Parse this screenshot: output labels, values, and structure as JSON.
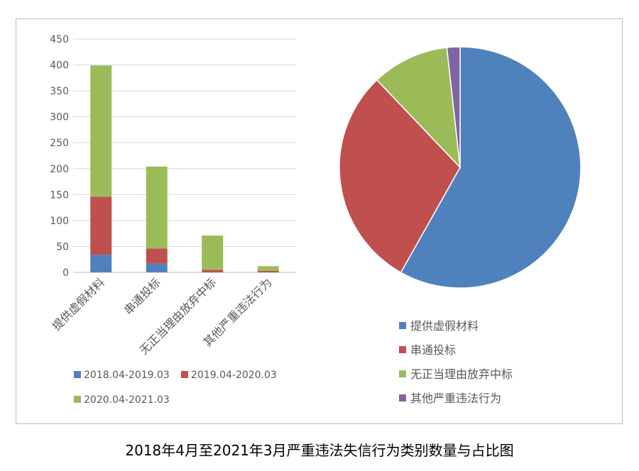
{
  "caption": "2018年4月至2021年3月严重违法失信行为类别数量与占比图",
  "colors": {
    "blue": "#4f81bd",
    "red": "#c0504d",
    "green": "#9bbb59",
    "purple": "#8064a2",
    "grid": "#d9d9d9",
    "axis_text": "#595959"
  },
  "chart_data": [
    {
      "type": "bar",
      "stacked": true,
      "categories": [
        "提供虚假材料",
        "串通投标",
        "无正当理由放弃中标",
        "其他严重违法行为"
      ],
      "series": [
        {
          "name": "2018.04-2019.03",
          "color": "#4f81bd",
          "values": [
            34,
            17,
            0,
            0
          ]
        },
        {
          "name": "2019.04-2020.03",
          "color": "#c0504d",
          "values": [
            112,
            29,
            5,
            3
          ]
        },
        {
          "name": "2020.04-2021.03",
          "color": "#9bbb59",
          "values": [
            253,
            158,
            66,
            9
          ]
        }
      ],
      "ylim": [
        0,
        450
      ],
      "yticks": [
        0,
        50,
        100,
        150,
        200,
        250,
        300,
        350,
        400,
        450
      ],
      "grid": true,
      "legend_position": "bottom"
    },
    {
      "type": "pie",
      "labels": [
        "提供虚假材料",
        "串通投标",
        "无正当理由放弃中标",
        "其他严重违法行为"
      ],
      "values": [
        399,
        204,
        71,
        12
      ],
      "colors": [
        "#4f81bd",
        "#c0504d",
        "#9bbb59",
        "#8064a2"
      ],
      "start_angle_deg": 0,
      "direction": "clockwise",
      "legend_position": "bottom"
    }
  ]
}
